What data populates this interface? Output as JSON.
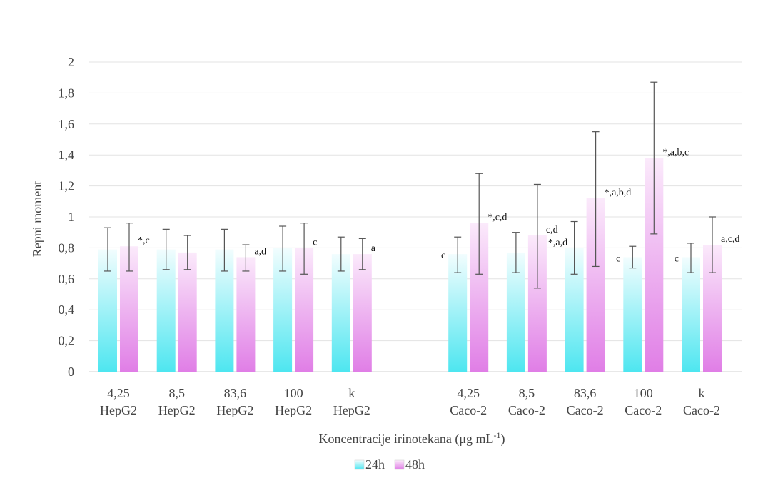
{
  "chart_data": {
    "type": "bar",
    "title": "",
    "xlabel": "Koncentracije irinotekana (μg mL",
    "xlabel_superscript": "-1",
    "xlabel_suffix": ")",
    "ylabel": "Repni moment",
    "ylim": [
      0,
      2
    ],
    "yticks": [
      "0",
      "0,2",
      "0,4",
      "0,6",
      "0,8",
      "1",
      "1,2",
      "1,4",
      "1,6",
      "1,8",
      "2"
    ],
    "grid": true,
    "legend_position": "bottom",
    "groups": [
      {
        "label": "HepG2",
        "categories": [
          "4,25",
          "8,5",
          "83,6",
          "100",
          "k"
        ]
      },
      {
        "label": "Caco-2",
        "categories": [
          "4,25",
          "8,5",
          "83,6",
          "100",
          "k"
        ]
      }
    ],
    "category_lines": [
      [
        "4,25",
        "HepG2"
      ],
      [
        "8,5",
        "HepG2"
      ],
      [
        "83,6",
        "HepG2"
      ],
      [
        "100",
        "HepG2"
      ],
      [
        "k",
        "HepG2"
      ],
      [
        "4,25",
        "Caco-2"
      ],
      [
        "8,5",
        "Caco-2"
      ],
      [
        "83,6",
        "Caco-2"
      ],
      [
        "100",
        "Caco-2"
      ],
      [
        "k",
        "Caco-2"
      ]
    ],
    "series": [
      {
        "name": "24h",
        "color_top": "#f2fdfe",
        "color_bottom": "#4ee6f0",
        "values": [
          0.79,
          0.79,
          0.79,
          0.8,
          0.76,
          0.76,
          0.77,
          0.8,
          0.74,
          0.74
        ],
        "err_low": [
          0.65,
          0.66,
          0.65,
          0.65,
          0.65,
          0.64,
          0.64,
          0.63,
          0.67,
          0.64
        ],
        "err_high": [
          0.93,
          0.92,
          0.92,
          0.94,
          0.87,
          0.87,
          0.9,
          0.97,
          0.81,
          0.83
        ],
        "annotations": [
          "",
          "",
          "",
          "",
          "",
          "c",
          "",
          "",
          "c",
          "c"
        ]
      },
      {
        "name": "48h",
        "color_top": "#fbeafb",
        "color_bottom": "#e07ee6",
        "values": [
          0.81,
          0.77,
          0.74,
          0.8,
          0.76,
          0.96,
          0.88,
          1.12,
          1.38,
          0.82
        ],
        "err_low": [
          0.65,
          0.66,
          0.65,
          0.63,
          0.66,
          0.63,
          0.54,
          0.68,
          0.89,
          0.64
        ],
        "err_high": [
          0.96,
          0.88,
          0.82,
          0.96,
          0.86,
          1.28,
          1.21,
          1.55,
          1.87,
          1.0
        ],
        "annotations": [
          "*,c",
          "",
          "a,d",
          "c",
          "a",
          "*,c,d",
          "c,d",
          "*,a,b,d",
          "*,a,b,c",
          "a,c,d"
        ],
        "annotations_left": [
          "",
          "",
          "",
          "",
          "",
          "",
          "*,a,d",
          "",
          "",
          ""
        ]
      }
    ]
  }
}
